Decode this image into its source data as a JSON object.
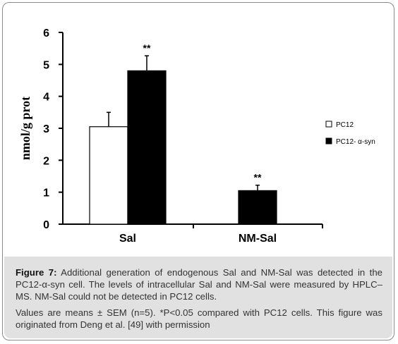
{
  "chart_data": {
    "type": "bar",
    "categories": [
      "Sal",
      "NM-Sal"
    ],
    "series": [
      {
        "name": "PC12",
        "values": [
          3.05,
          null
        ],
        "errors": [
          0.45,
          null
        ],
        "color": "#ffffff"
      },
      {
        "name": "PC12- α-syn",
        "values": [
          4.8,
          1.05
        ],
        "errors": [
          0.47,
          0.17
        ],
        "color": "#000000"
      }
    ],
    "annotations": [
      {
        "category": "Sal",
        "series": "PC12- α-syn",
        "text": "**"
      },
      {
        "category": "NM-Sal",
        "series": "PC12- α-syn",
        "text": "**"
      }
    ],
    "ylabel": "nmol/g prot",
    "xlabel": "",
    "ylim": [
      0,
      6
    ],
    "yticks": [
      "0",
      "1",
      "2",
      "3",
      "4",
      "5",
      "6"
    ],
    "grid": false,
    "legend_position": "right"
  },
  "caption": {
    "label": "Figure 7:",
    "text": " Additional generation of endogenous Sal and NM-Sal was detected in the PC12-α-syn cell. The levels of intracellular Sal and NM-Sal were measured by HPLC–MS. NM-Sal could not be detected in PC12 cells.",
    "notes": "Values are means ± SEM (n=5). *P<0.05 compared with PC12 cells. This figure was originated from Deng et al. [49] with permission"
  }
}
